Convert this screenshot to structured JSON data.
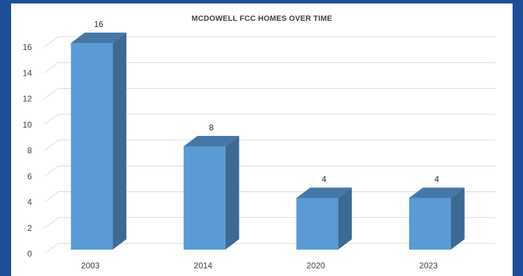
{
  "chart_data": {
    "type": "bar",
    "title": "MCDOWELL FCC HOMES OVER TIME",
    "categories": [
      "2003",
      "2014",
      "2020",
      "2023"
    ],
    "values": [
      16,
      8,
      4,
      4
    ],
    "data_labels": [
      "16",
      "8",
      "4",
      "4"
    ],
    "xlabel": "",
    "ylabel": "",
    "ylim": [
      0,
      16
    ],
    "yticks": [
      "0",
      "2",
      "4",
      "6",
      "8",
      "10",
      "12",
      "14",
      "16"
    ],
    "grid": true,
    "legend": "none",
    "style": "3d-column"
  },
  "colors": {
    "background": "#1f4e99",
    "plot_background": "#ffffff",
    "bar_front": "#5b9bd5",
    "bar_side": "#3d6a95",
    "bar_top": "#4578a8",
    "gridline": "#d9d9d9",
    "text": "#404040"
  }
}
